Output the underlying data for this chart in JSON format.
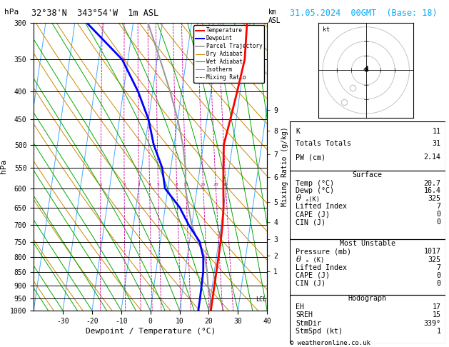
{
  "title_left": "32°38'N  343°54'W  1m ASL",
  "title_right": "31.05.2024  00GMT  (Base: 18)",
  "xlabel": "Dewpoint / Temperature (°C)",
  "ylabel_hpa": "hPa",
  "P_MIN": 300,
  "P_MAX": 1000,
  "T_MIN": -40,
  "T_MAX": 40,
  "SKEW": 27,
  "background": "#ffffff",
  "isotherm_color": "#44aaff",
  "dry_adiabat_color": "#cc8800",
  "wet_adiabat_color": "#00aa00",
  "mixing_ratio_color": "#cc0099",
  "temperature_color": "#ff0000",
  "dewpoint_color": "#0000ff",
  "parcel_color": "#999999",
  "pressure_ticks": [
    300,
    350,
    400,
    450,
    500,
    550,
    600,
    650,
    700,
    750,
    800,
    850,
    900,
    950,
    1000
  ],
  "temp_ticks": [
    -30,
    -20,
    -10,
    0,
    10,
    20,
    30,
    40
  ],
  "km_ticks": [
    1,
    2,
    3,
    4,
    5,
    6,
    7,
    8,
    9
  ],
  "km_pressures": [
    848,
    795,
    742,
    690,
    635,
    572,
    520,
    472,
    432
  ],
  "mixing_ratios": [
    1,
    2,
    3,
    4,
    5,
    8,
    10,
    15,
    20,
    25
  ],
  "mixing_ratio_label_pressure": 590,
  "lcl_pressure": 955,
  "temp_profile_P": [
    300,
    350,
    400,
    450,
    500,
    550,
    600,
    650,
    700,
    750,
    800,
    850,
    900,
    950,
    1000
  ],
  "temp_profile_T": [
    19,
    20,
    19,
    18,
    17,
    18,
    19,
    20,
    20.5,
    20.7,
    20.7,
    20.7,
    20.7,
    20.7,
    20.7
  ],
  "dewpoint_profile_P": [
    300,
    350,
    400,
    450,
    500,
    550,
    600,
    650,
    700,
    750,
    800,
    850,
    900,
    950,
    1000
  ],
  "dewpoint_profile_T": [
    -36,
    -22,
    -15,
    -10,
    -7,
    -3,
    -1,
    5,
    9,
    13.5,
    15.5,
    16.2,
    16.3,
    16.4,
    16.4
  ],
  "parcel_profile_P": [
    300,
    350,
    400,
    450,
    500,
    550,
    600,
    650,
    700,
    750,
    800,
    850,
    900,
    950,
    1000
  ],
  "parcel_profile_T": [
    -15,
    -9,
    -4,
    0,
    3,
    5,
    6,
    8,
    10,
    13,
    16,
    17.5,
    18.5,
    20,
    20.7
  ],
  "lcl_label": "LCL",
  "mixing_ratio_axis_label": "Mixing Ratio (g/kg)",
  "stats": {
    "K": "11",
    "Totals_Totals": "31",
    "PW_cm": "2.14",
    "Surface_Temp": "20.7",
    "Surface_Dewp": "16.4",
    "Surface_ThetaE": "325",
    "Lifted_Index": "7",
    "CAPE": "0",
    "CIN": "0",
    "MU_Pressure": "1017",
    "MU_ThetaE": "325",
    "MU_LI": "7",
    "MU_CAPE": "0",
    "MU_CIN": "0",
    "EH": "17",
    "SREH": "15",
    "StmDir": "339°",
    "StmSpd": "1"
  },
  "legend_items": [
    {
      "label": "Temperature",
      "color": "#ff0000",
      "ls": "-",
      "lw": 1.5
    },
    {
      "label": "Dewpoint",
      "color": "#0000ff",
      "ls": "-",
      "lw": 1.5
    },
    {
      "label": "Parcel Trajectory",
      "color": "#999999",
      "ls": "-",
      "lw": 1.2
    },
    {
      "label": "Dry Adiabat",
      "color": "#cc8800",
      "ls": "-",
      "lw": 0.8
    },
    {
      "label": "Wet Adiabat",
      "color": "#00aa00",
      "ls": "-",
      "lw": 0.8
    },
    {
      "label": "Isotherm",
      "color": "#44aaff",
      "ls": "-",
      "lw": 0.8
    },
    {
      "label": "Mixing Ratio",
      "color": "#cc0099",
      "ls": "--",
      "lw": 0.7
    }
  ],
  "copyright": "© weatheronline.co.uk"
}
